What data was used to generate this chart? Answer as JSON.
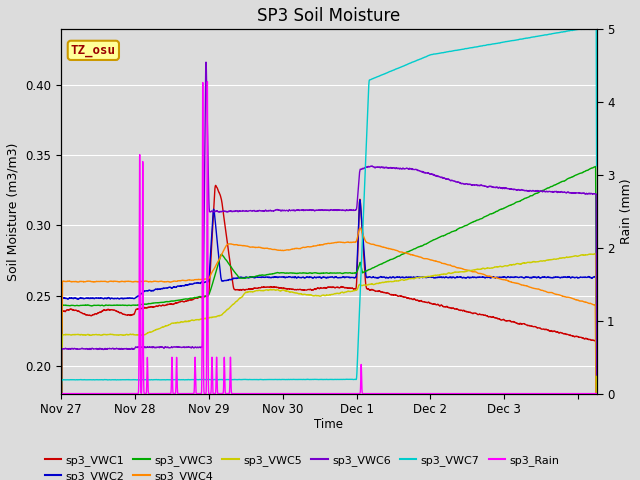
{
  "title": "SP3 Soil Moisture",
  "ylabel_left": "Soil Moisture (m3/m3)",
  "ylabel_right": "Rain (mm)",
  "xlabel": "Time",
  "ylim_left": [
    0.18,
    0.44
  ],
  "ylim_right": [
    0.0,
    5.0
  ],
  "background_color": "#dcdcdc",
  "annotation_text": "TZ_osu",
  "annotation_color": "#990000",
  "annotation_bg": "#ffff99",
  "annotation_border": "#cc9900",
  "x_tick_positions": [
    0,
    24,
    48,
    72,
    96,
    120,
    144,
    168
  ],
  "x_tick_labels": [
    "Nov 27",
    "Nov 28",
    "Nov 29",
    "Nov 30",
    "Dec 1",
    "Dec 2",
    "Dec 3",
    ""
  ],
  "colors": {
    "vwc1": "#cc0000",
    "vwc2": "#0000cc",
    "vwc3": "#00aa00",
    "vwc4": "#ff8800",
    "vwc5": "#cccc00",
    "vwc6": "#7700cc",
    "vwc7": "#00cccc",
    "rain": "#ff00ff"
  }
}
